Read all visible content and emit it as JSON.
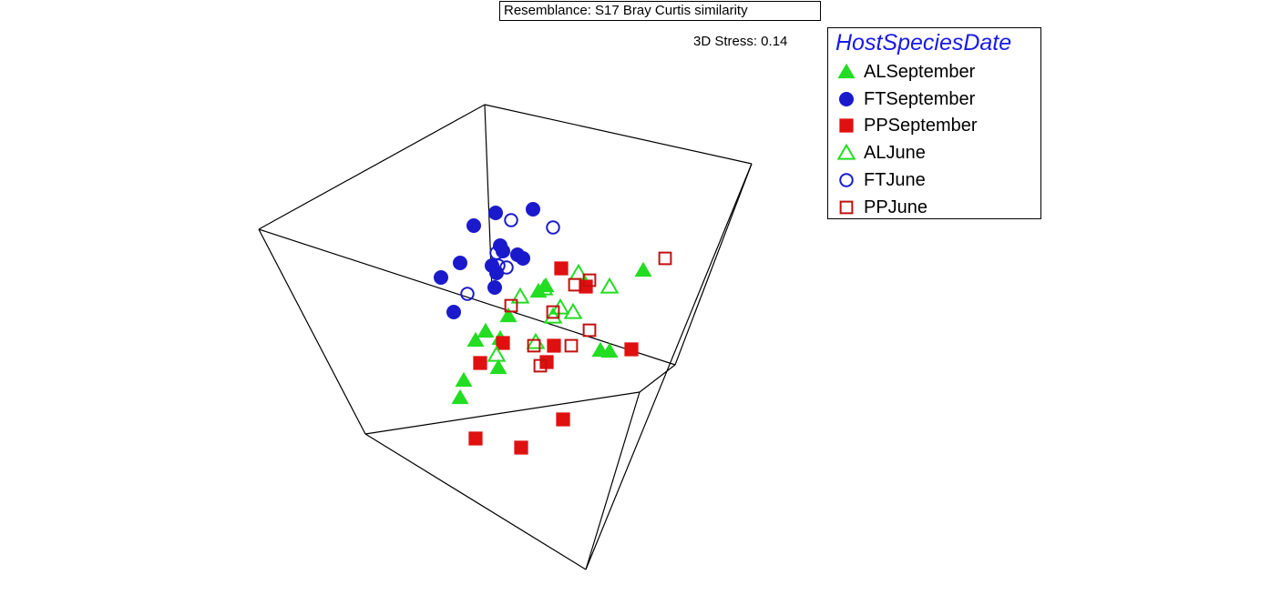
{
  "header": {
    "resemblance": "Resemblance: S17 Bray Curtis similarity",
    "stress": "3D Stress: 0.14"
  },
  "legend": {
    "title": "HostSpeciesDate",
    "items": [
      {
        "label": "ALSeptember",
        "shape": "triangle",
        "filled": true,
        "color": "#22dd22"
      },
      {
        "label": "FTSeptember",
        "shape": "circle",
        "filled": true,
        "color": "#1a1acc"
      },
      {
        "label": "PPSeptember",
        "shape": "square",
        "filled": true,
        "color": "#e01010"
      },
      {
        "label": "ALJune",
        "shape": "triangle",
        "filled": false,
        "color": "#22dd22"
      },
      {
        "label": "FTJune",
        "shape": "circle",
        "filled": false,
        "color": "#1a1acc"
      },
      {
        "label": "PPJune",
        "shape": "square",
        "filled": false,
        "color": "#c01010"
      }
    ]
  },
  "chart_data": {
    "type": "scatter",
    "projection": "3D MDS",
    "series": [
      {
        "name": "ALSeptember",
        "points": [
          [
            706,
            297
          ],
          [
            533,
            364
          ],
          [
            549,
            372
          ],
          [
            522,
            374
          ],
          [
            558,
            347
          ],
          [
            547,
            404
          ],
          [
            509,
            418
          ],
          [
            505,
            437
          ],
          [
            659,
            385
          ],
          [
            669,
            386
          ],
          [
            599,
            314
          ],
          [
            591,
            320
          ]
        ]
      },
      {
        "name": "FTSeptember",
        "points": [
          [
            544,
            234
          ],
          [
            585,
            230
          ],
          [
            520,
            248
          ],
          [
            505,
            289
          ],
          [
            549,
            270
          ],
          [
            552,
            276
          ],
          [
            568,
            280
          ],
          [
            574,
            284
          ],
          [
            540,
            292
          ],
          [
            545,
            300
          ],
          [
            484,
            305
          ],
          [
            543,
            316
          ],
          [
            498,
            343
          ]
        ]
      },
      {
        "name": "PPSeptember",
        "points": [
          [
            616,
            295
          ],
          [
            643,
            315
          ],
          [
            552,
            377
          ],
          [
            608,
            380
          ],
          [
            693,
            384
          ],
          [
            527,
            399
          ],
          [
            600,
            398
          ],
          [
            618,
            461
          ],
          [
            522,
            482
          ],
          [
            572,
            492
          ]
        ]
      },
      {
        "name": "ALJune",
        "points": [
          [
            635,
            300
          ],
          [
            669,
            315
          ],
          [
            571,
            326
          ],
          [
            597,
            317
          ],
          [
            615,
            338
          ],
          [
            629,
            343
          ],
          [
            607,
            348
          ],
          [
            588,
            376
          ],
          [
            545,
            390
          ]
        ]
      },
      {
        "name": "FTJune",
        "points": [
          [
            561,
            242
          ],
          [
            607,
            250
          ],
          [
            545,
            278
          ],
          [
            547,
            292
          ],
          [
            556,
            294
          ],
          [
            513,
            323
          ]
        ]
      },
      {
        "name": "PPJune",
        "points": [
          [
            730,
            284
          ],
          [
            647,
            308
          ],
          [
            631,
            313
          ],
          [
            561,
            336
          ],
          [
            607,
            343
          ],
          [
            647,
            363
          ],
          [
            586,
            380
          ],
          [
            627,
            380
          ],
          [
            593,
            402
          ]
        ]
      }
    ]
  }
}
